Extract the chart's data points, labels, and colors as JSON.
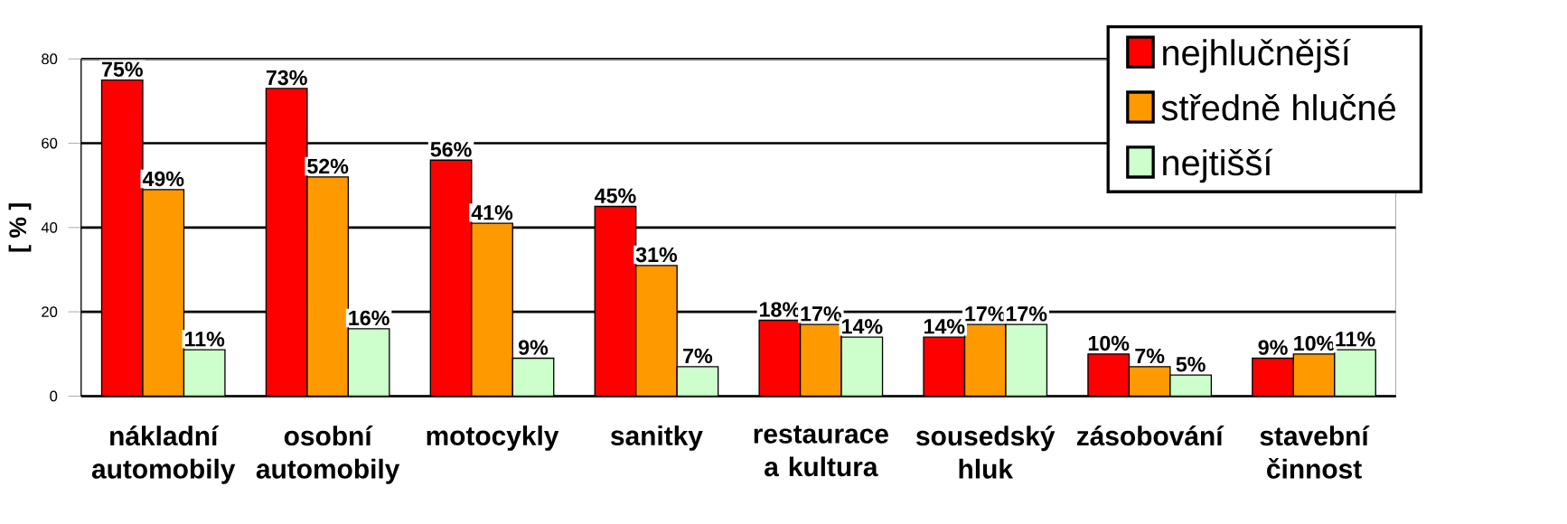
{
  "chart_data": {
    "type": "bar",
    "ylabel": "[ % ]",
    "categories": [
      "nákladní automobily",
      "osobní automobily",
      "motocykly",
      "sanitky",
      "restaurace a kultura",
      "sousedský hluk",
      "zásobování",
      "stavební činnost"
    ],
    "series": [
      {
        "name": "nejhlučnější",
        "color": "#ff0000",
        "values": [
          75,
          73,
          56,
          45,
          18,
          14,
          10,
          9
        ],
        "value_labels": [
          "75%",
          "73%",
          "56%",
          "45%",
          "18%",
          "14%",
          "10%",
          "9%"
        ]
      },
      {
        "name": "středně hlučné",
        "color": "#ff9900",
        "values": [
          49,
          52,
          41,
          31,
          17,
          17,
          7,
          10
        ],
        "value_labels": [
          "49%",
          "52%",
          "41%",
          "31%",
          "17%",
          "17%",
          "7%",
          "10%"
        ]
      },
      {
        "name": "nejtišší",
        "color": "#ccffcc",
        "values": [
          11,
          16,
          9,
          7,
          14,
          17,
          5,
          11
        ],
        "value_labels": [
          "11%",
          "16%",
          "9%",
          "7%",
          "14%",
          "17%",
          "5%",
          "11%"
        ]
      }
    ],
    "ylim": [
      0,
      80
    ],
    "yticks": [
      0,
      20,
      40,
      60,
      80
    ],
    "grid": "y",
    "legend": "top right"
  }
}
